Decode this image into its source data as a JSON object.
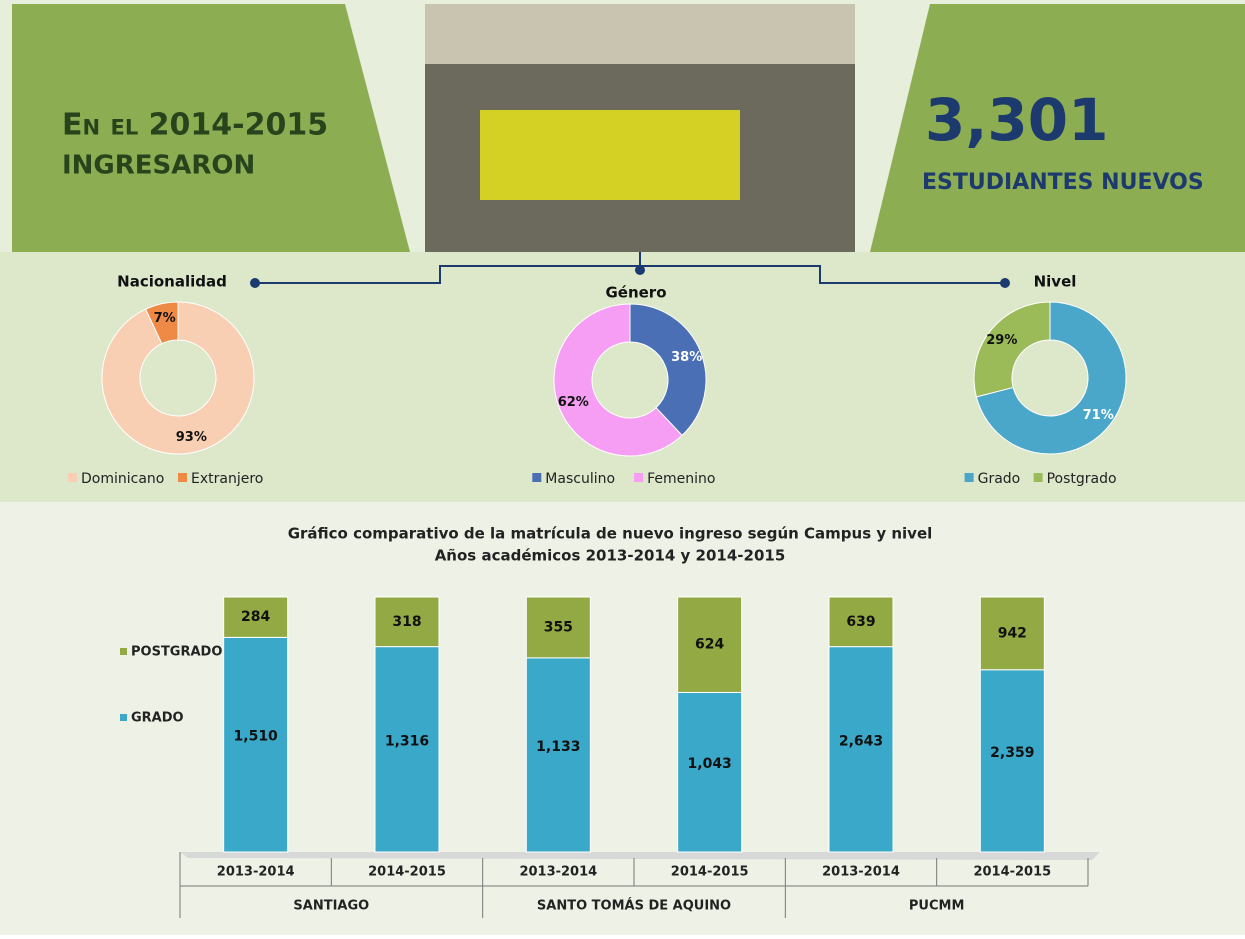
{
  "header": {
    "left_line1": "En el 2014-2015",
    "left_line2": "INGRESARON",
    "number": "3,301",
    "right_line": "ESTUDIANTES NUEVOS"
  },
  "chart_data": [
    {
      "type": "donut",
      "title": "Nacionalidad",
      "categories": [
        "Dominicano",
        "Extranjero"
      ],
      "values": [
        93,
        7
      ],
      "value_labels": [
        "93%",
        "7%"
      ],
      "colors": [
        "#f9cfb3",
        "#ee8a45"
      ]
    },
    {
      "type": "donut",
      "title": "Género",
      "categories": [
        "Masculino",
        "Femenino"
      ],
      "values": [
        38,
        62
      ],
      "value_labels": [
        "38%",
        "62%"
      ],
      "colors": [
        "#4a6fb5",
        "#f59ef3"
      ]
    },
    {
      "type": "donut",
      "title": "Nivel",
      "categories": [
        "Grado",
        "Postgrado"
      ],
      "values": [
        71,
        29
      ],
      "value_labels": [
        "71%",
        "29%"
      ],
      "colors": [
        "#4aa7c9",
        "#9bbb59"
      ]
    },
    {
      "type": "bar",
      "stacked": "percent",
      "title": "Gráfico comparativo de la matrícula de nuevo ingreso según Campus y nivel",
      "subtitle": "Años académicos  2013-2014  y 2014-2015",
      "categories": [
        "2013-2014",
        "2014-2015",
        "2013-2014",
        "2014-2015",
        "2013-2014",
        "2014-2015"
      ],
      "groups": [
        "SANTIAGO",
        "SANTO TOMÁS DE AQUINO",
        "PUCMM"
      ],
      "series": [
        {
          "name": "GRADO",
          "color": "#3aa8c8",
          "values": [
            1510,
            1316,
            1133,
            1043,
            2643,
            2359
          ],
          "value_labels": [
            "1,510",
            "1,316",
            "1,133",
            "1,043",
            "2,643",
            "2,359"
          ]
        },
        {
          "name": "POSTGRADO",
          "color": "#93a943",
          "values": [
            284,
            318,
            355,
            624,
            639,
            942
          ]
        }
      ]
    }
  ]
}
